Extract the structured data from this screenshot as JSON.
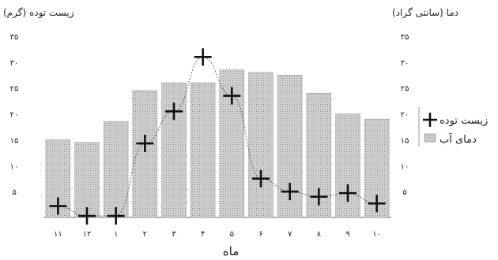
{
  "chart_data": {
    "type": "bar",
    "categories": [
      "۱۱",
      "۱۲",
      "۱",
      "۲",
      "۳",
      "۴",
      "۵",
      "۶",
      "۷",
      "۸",
      "۹",
      "۱۰"
    ],
    "left_axis": {
      "title": "زیست توده (گرم)",
      "ylim": [
        0,
        35
      ],
      "ticks": [
        "۳۵",
        "۳۰",
        "۲۵",
        "۲۰",
        "۱۵",
        "۱۰",
        "۵"
      ]
    },
    "right_axis": {
      "title": "دما (سانتی گراد)",
      "ylim": [
        0,
        35
      ],
      "ticks": [
        "۳۵",
        "۳۰",
        "۲۵",
        "۲۰",
        "۱۵",
        "۱۰",
        "۵"
      ]
    },
    "xlabel": "ماه",
    "series": [
      {
        "name": "دمای آب",
        "type": "bar",
        "axis": "right",
        "values": [
          15,
          14.5,
          18.5,
          24.5,
          26,
          26,
          28.5,
          28,
          27.5,
          24,
          20,
          19
        ]
      },
      {
        "name": "زیست توده",
        "type": "scatter",
        "axis": "left",
        "values": [
          2.2,
          0.3,
          0.3,
          14.3,
          20.5,
          31,
          23.5,
          7.5,
          5,
          4,
          4.7,
          2.7
        ]
      }
    ],
    "legend": {
      "position": "right",
      "items": [
        "زیست توده",
        "دمای آب"
      ]
    },
    "grid": false
  }
}
